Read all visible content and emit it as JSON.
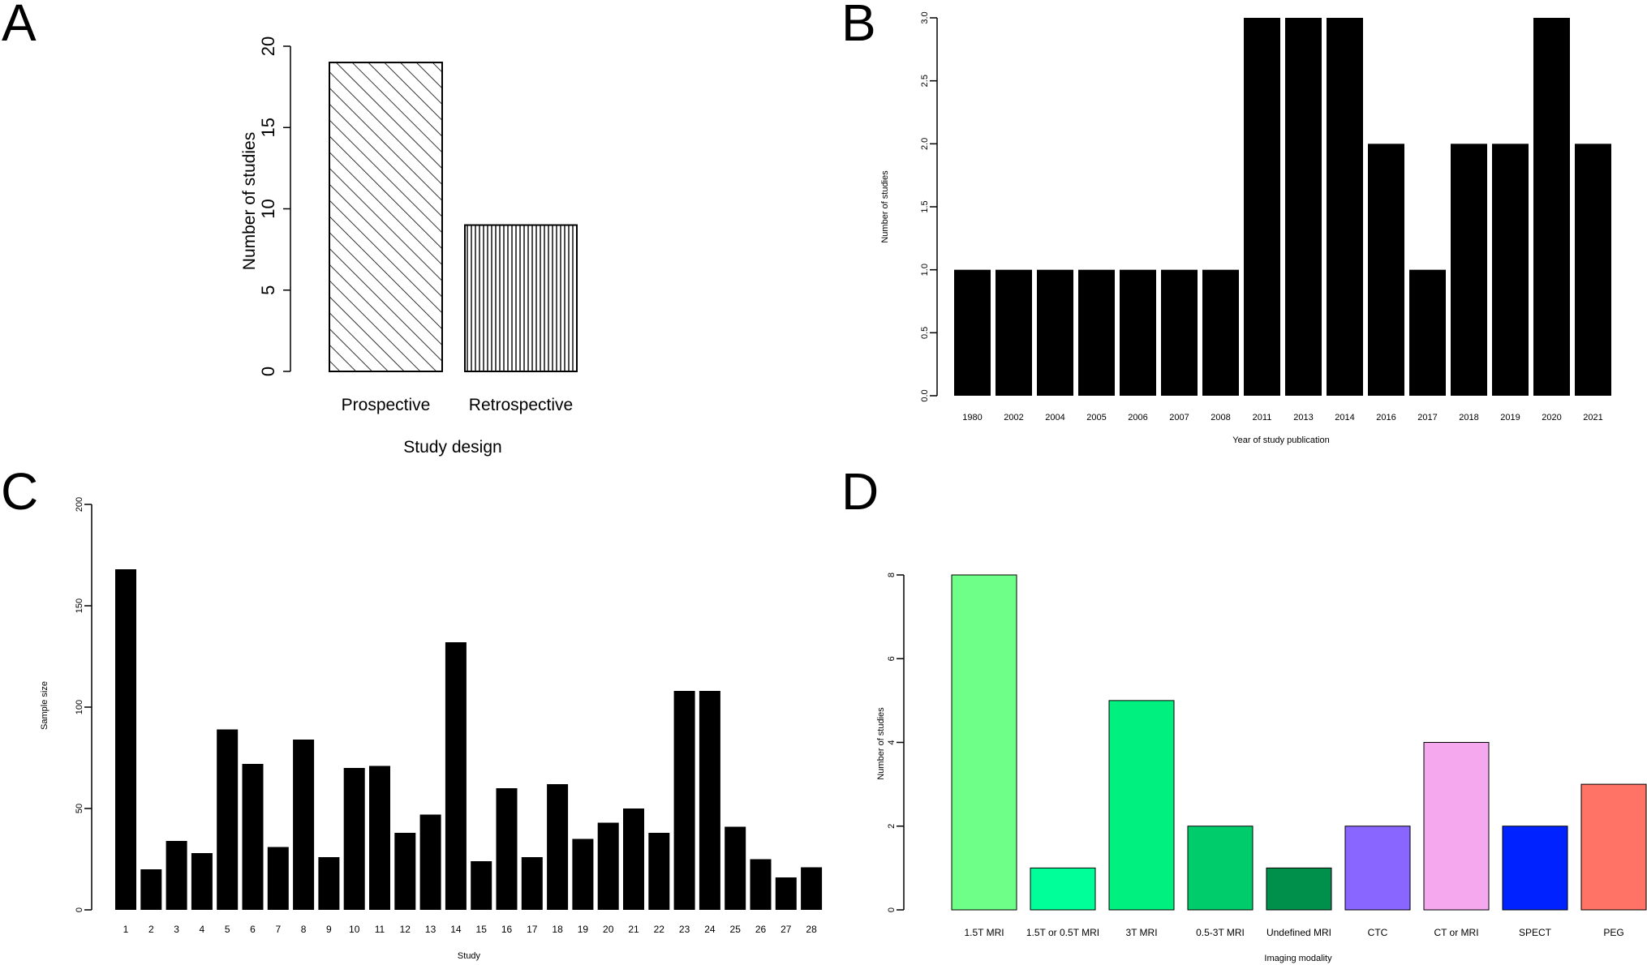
{
  "chart_data": [
    {
      "id": "A",
      "panel_label": "A",
      "type": "bar",
      "categories": [
        "Prospective",
        "Retrospective"
      ],
      "values": [
        19,
        9
      ],
      "fills": [
        "diagonal-hatch",
        "vertical-hatch"
      ],
      "xlabel": "Study design",
      "ylabel": "Number of studies",
      "ylim": [
        0,
        20
      ],
      "yticks": [
        "0",
        "5",
        "10",
        "15",
        "20"
      ],
      "grid": false
    },
    {
      "id": "B",
      "panel_label": "B",
      "type": "bar",
      "categories": [
        "1980",
        "2002",
        "2004",
        "2005",
        "2006",
        "2007",
        "2008",
        "2011",
        "2013",
        "2014",
        "2016",
        "2017",
        "2018",
        "2019",
        "2020",
        "2021"
      ],
      "values": [
        1,
        1,
        1,
        1,
        1,
        1,
        1,
        3,
        3,
        3,
        2,
        1,
        2,
        2,
        3,
        2
      ],
      "bar_color": "#000000",
      "xlabel": "Year of study publication",
      "ylabel": "Number of studies",
      "ylim": [
        0,
        3
      ],
      "yticks": [
        "0.0",
        "0.5",
        "1.0",
        "1.5",
        "2.0",
        "2.5",
        "3.0"
      ],
      "grid": false
    },
    {
      "id": "C",
      "panel_label": "C",
      "type": "bar",
      "categories": [
        "1",
        "2",
        "3",
        "4",
        "5",
        "6",
        "7",
        "8",
        "9",
        "10",
        "11",
        "12",
        "13",
        "14",
        "15",
        "16",
        "17",
        "18",
        "19",
        "20",
        "21",
        "22",
        "23",
        "24",
        "25",
        "26",
        "27",
        "28"
      ],
      "values": [
        168,
        20,
        34,
        28,
        89,
        72,
        31,
        84,
        26,
        70,
        71,
        38,
        47,
        132,
        24,
        60,
        26,
        62,
        35,
        43,
        50,
        38,
        108,
        108,
        41,
        25,
        16,
        21
      ],
      "bar_color": "#000000",
      "xlabel": "Study",
      "ylabel": "Sample size",
      "ylim": [
        0,
        200
      ],
      "yticks": [
        "0",
        "50",
        "100",
        "150",
        "200"
      ],
      "grid": false
    },
    {
      "id": "D",
      "panel_label": "D",
      "type": "bar",
      "categories": [
        "1.5T MRI",
        "1.5T or 0.5T MRI",
        "3T MRI",
        "0.5-3T MRI",
        "Undefined MRI",
        "CTC",
        "CT or MRI",
        "SPECT",
        "PEG"
      ],
      "values": [
        8,
        1,
        5,
        2,
        1,
        2,
        4,
        2,
        3
      ],
      "colors": [
        "#6eff88",
        "#00ff99",
        "#00f080",
        "#00cc6c",
        "#00904c",
        "#8866ff",
        "#f5a8ee",
        "#0022ff",
        "#ff7266"
      ],
      "xlabel": "Imaging modality",
      "ylabel": "Number of studies",
      "ylim": [
        0,
        8
      ],
      "yticks": [
        "0",
        "2",
        "4",
        "6",
        "8"
      ],
      "grid": false
    }
  ]
}
